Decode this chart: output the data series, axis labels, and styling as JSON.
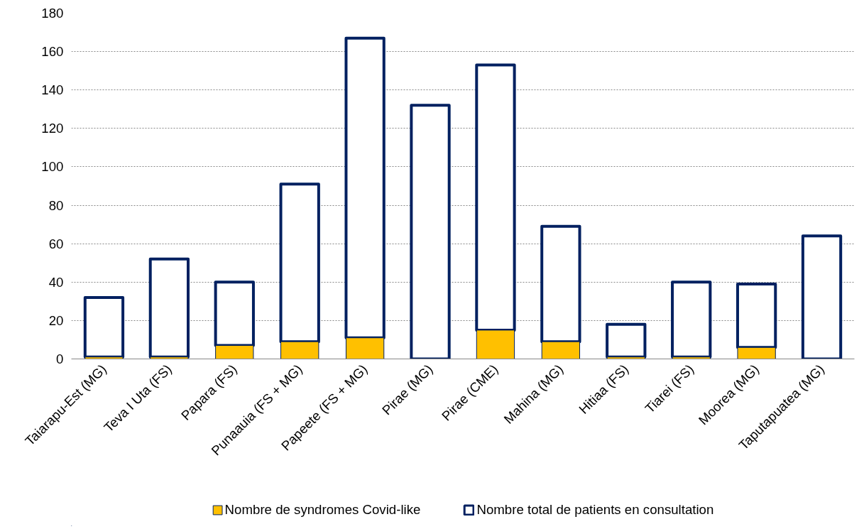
{
  "chart_data": {
    "type": "bar",
    "stacked": true,
    "categories": [
      "Taiarapu-Est (MG)",
      "Teva I Uta (FS)",
      "Papara (FS)",
      "Punaauia (FS + MG)",
      "Papeete (FS + MG)",
      "Pirae (MG)",
      "Pirae (CME)",
      "Mahina (MG)",
      "Hitiaa (FS)",
      "Tiarei (FS)",
      "Moorea (MG)",
      "Taputapuatea (MG)"
    ],
    "series": [
      {
        "name": "Nombre de syndromes Covid-like",
        "color": "#ffc000",
        "values": [
          1,
          1,
          7,
          9,
          11,
          0,
          15,
          9,
          1,
          1,
          6,
          0
        ]
      },
      {
        "name": "Nombre total de patients en consultation",
        "color": "#ffffff",
        "values": [
          31,
          51,
          33,
          82,
          156,
          132,
          138,
          60,
          17,
          39,
          33,
          64
        ]
      }
    ],
    "ylim": [
      0,
      180
    ],
    "yticks": [
      0,
      20,
      40,
      60,
      80,
      100,
      120,
      140,
      160,
      180
    ],
    "grid": "y",
    "legend": "bottom"
  }
}
